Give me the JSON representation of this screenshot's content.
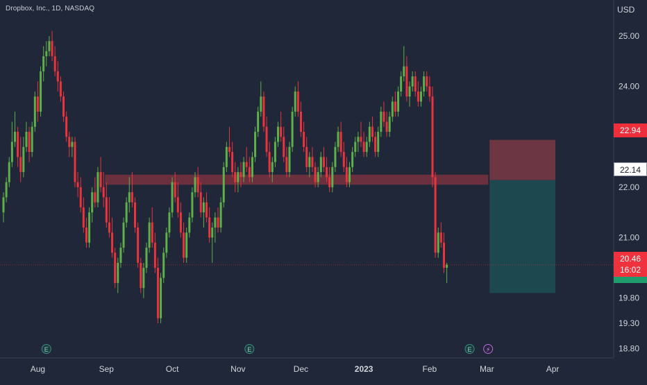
{
  "header": {
    "title": "Dropbox, Inc., 1D, NASDAQ",
    "currency": "USD"
  },
  "colors": {
    "background": "#1f2738",
    "up": "#5fb04a",
    "down": "#e9343e",
    "zone": "#8a3440",
    "target": "#7a3b45",
    "stop": "#1f4a51",
    "axis_text": "#d1d4dc"
  },
  "price_labels": {
    "target": "22.94",
    "entry": "22.14",
    "last_price": "20.46",
    "countdown": "16:02"
  },
  "earnings_icon_glyph": "E",
  "split_icon_glyph": "⚡",
  "chart_data": {
    "type": "candlestick",
    "title": "Dropbox, Inc., 1D, NASDAQ",
    "ylabel": "USD",
    "ylim": [
      18.7,
      25.4
    ],
    "y_ticks": [
      25.0,
      24.0,
      23.0,
      22.0,
      21.0,
      20.46,
      19.8,
      19.3,
      18.8
    ],
    "y_tick_labels": [
      "25.00",
      "24.00",
      "",
      "22.00",
      "21.00",
      "",
      "19.80",
      "19.30",
      "18.80"
    ],
    "x_ticks": [
      {
        "label": "Aug",
        "bar": 12
      },
      {
        "label": "Sep",
        "bar": 36
      },
      {
        "label": "Oct",
        "bar": 59
      },
      {
        "label": "Nov",
        "bar": 82
      },
      {
        "label": "Dec",
        "bar": 104
      },
      {
        "label": "2023",
        "bar": 126
      },
      {
        "label": "Feb",
        "bar": 149
      },
      {
        "label": "Mar",
        "bar": 169
      },
      {
        "label": "Apr",
        "bar": 192
      }
    ],
    "earnings_markers": [
      15,
      86,
      163
    ],
    "split_marker": [
      168
    ],
    "resistance_zone": {
      "bar_start": 36,
      "bar_end": 169,
      "low": 22.05,
      "high": 22.25
    },
    "position": {
      "bar_start": 169,
      "bar_end": 192,
      "target": 22.94,
      "entry": 22.14,
      "stop": 19.9
    },
    "last_price": 20.46,
    "candles": [
      [
        21.5,
        21.9,
        21.3,
        21.8
      ],
      [
        21.8,
        22.2,
        21.7,
        22.1
      ],
      [
        22.1,
        22.6,
        22.0,
        22.5
      ],
      [
        22.5,
        23.3,
        22.4,
        22.9
      ],
      [
        22.9,
        23.5,
        22.8,
        23.1
      ],
      [
        23.1,
        23.2,
        22.4,
        22.6
      ],
      [
        22.6,
        23.0,
        22.1,
        22.3
      ],
      [
        22.3,
        23.0,
        22.2,
        22.8
      ],
      [
        22.8,
        23.3,
        22.7,
        23.1
      ],
      [
        23.1,
        23.2,
        22.5,
        22.7
      ],
      [
        22.7,
        23.3,
        22.6,
        23.2
      ],
      [
        23.2,
        23.9,
        23.1,
        23.8
      ],
      [
        23.8,
        24.1,
        23.3,
        23.5
      ],
      [
        23.5,
        24.4,
        23.4,
        24.3
      ],
      [
        24.3,
        24.8,
        24.1,
        24.6
      ],
      [
        24.6,
        24.9,
        24.4,
        24.7
      ],
      [
        24.7,
        25.0,
        24.6,
        24.9
      ],
      [
        24.9,
        25.1,
        24.5,
        24.6
      ],
      [
        24.6,
        24.8,
        24.2,
        24.3
      ],
      [
        24.3,
        24.5,
        23.9,
        24.1
      ],
      [
        24.1,
        24.2,
        23.7,
        23.8
      ],
      [
        23.8,
        23.9,
        23.3,
        23.4
      ],
      [
        23.4,
        23.5,
        22.9,
        23.0
      ],
      [
        23.0,
        23.1,
        22.6,
        22.8
      ],
      [
        22.8,
        23.0,
        22.6,
        22.9
      ],
      [
        22.9,
        23.0,
        22.0,
        22.1
      ],
      [
        22.1,
        22.3,
        21.8,
        22.0
      ],
      [
        22.0,
        22.2,
        21.5,
        21.6
      ],
      [
        21.6,
        21.8,
        21.1,
        21.2
      ],
      [
        21.2,
        21.4,
        20.8,
        20.9
      ],
      [
        20.9,
        21.6,
        20.8,
        21.5
      ],
      [
        21.5,
        22.0,
        21.3,
        21.9
      ],
      [
        21.9,
        22.2,
        21.6,
        21.7
      ],
      [
        21.7,
        22.4,
        21.6,
        22.3
      ],
      [
        22.3,
        22.6,
        21.9,
        22.0
      ],
      [
        22.0,
        22.3,
        21.6,
        21.8
      ],
      [
        21.8,
        22.1,
        21.2,
        21.3
      ],
      [
        21.3,
        21.8,
        21.0,
        21.1
      ],
      [
        21.1,
        21.4,
        20.6,
        20.7
      ],
      [
        20.7,
        20.8,
        20.0,
        20.1
      ],
      [
        20.1,
        20.6,
        19.9,
        20.5
      ],
      [
        20.5,
        20.9,
        20.4,
        20.8
      ],
      [
        20.8,
        21.4,
        20.7,
        21.3
      ],
      [
        21.3,
        21.8,
        21.2,
        21.7
      ],
      [
        21.7,
        22.2,
        21.5,
        21.9
      ],
      [
        21.9,
        22.3,
        21.6,
        21.7
      ],
      [
        21.7,
        21.8,
        21.1,
        21.2
      ],
      [
        21.2,
        21.3,
        20.4,
        20.5
      ],
      [
        20.5,
        20.6,
        19.9,
        20.0
      ],
      [
        20.0,
        20.5,
        19.8,
        20.4
      ],
      [
        20.4,
        20.9,
        20.3,
        20.8
      ],
      [
        20.8,
        21.4,
        20.7,
        21.3
      ],
      [
        21.3,
        21.6,
        20.8,
        20.9
      ],
      [
        20.9,
        21.1,
        20.3,
        20.4
      ],
      [
        20.4,
        20.6,
        19.3,
        19.4
      ],
      [
        19.4,
        20.3,
        19.3,
        20.2
      ],
      [
        20.2,
        20.8,
        20.1,
        20.7
      ],
      [
        20.7,
        21.2,
        20.6,
        21.1
      ],
      [
        21.1,
        21.6,
        21.0,
        21.5
      ],
      [
        21.5,
        22.2,
        21.4,
        22.1
      ],
      [
        22.1,
        22.3,
        21.7,
        21.8
      ],
      [
        21.8,
        22.1,
        21.4,
        21.5
      ],
      [
        21.5,
        21.7,
        21.0,
        21.1
      ],
      [
        21.1,
        21.3,
        20.5,
        20.6
      ],
      [
        20.6,
        21.2,
        20.5,
        21.1
      ],
      [
        21.1,
        21.5,
        21.0,
        21.4
      ],
      [
        21.4,
        22.0,
        21.3,
        21.9
      ],
      [
        21.9,
        22.3,
        21.8,
        22.2
      ],
      [
        22.2,
        22.4,
        21.8,
        21.9
      ],
      [
        21.9,
        22.1,
        21.4,
        21.5
      ],
      [
        21.5,
        21.8,
        21.2,
        21.7
      ],
      [
        21.7,
        21.9,
        21.3,
        21.4
      ],
      [
        21.4,
        21.6,
        20.9,
        21.0
      ],
      [
        21.0,
        21.3,
        20.5,
        21.2
      ],
      [
        21.2,
        21.5,
        20.9,
        21.4
      ],
      [
        21.4,
        21.6,
        21.1,
        21.2
      ],
      [
        21.2,
        21.8,
        21.1,
        21.7
      ],
      [
        21.7,
        22.5,
        21.6,
        22.4
      ],
      [
        22.4,
        22.9,
        22.3,
        22.8
      ],
      [
        22.8,
        23.2,
        22.6,
        22.7
      ],
      [
        22.7,
        22.9,
        22.2,
        22.3
      ],
      [
        22.3,
        22.5,
        21.9,
        22.1
      ],
      [
        22.1,
        22.4,
        21.9,
        22.3
      ],
      [
        22.3,
        22.5,
        22.0,
        22.2
      ],
      [
        22.2,
        22.6,
        22.1,
        22.5
      ],
      [
        22.5,
        22.8,
        22.3,
        22.4
      ],
      [
        22.4,
        22.6,
        22.1,
        22.2
      ],
      [
        22.2,
        22.7,
        22.1,
        22.6
      ],
      [
        22.6,
        23.2,
        22.5,
        23.1
      ],
      [
        23.1,
        23.6,
        23.0,
        23.5
      ],
      [
        23.5,
        24.1,
        23.4,
        23.8
      ],
      [
        23.8,
        23.9,
        23.1,
        23.2
      ],
      [
        23.2,
        23.4,
        22.6,
        22.7
      ],
      [
        22.7,
        22.9,
        22.2,
        22.3
      ],
      [
        22.3,
        22.6,
        22.1,
        22.5
      ],
      [
        22.5,
        23.0,
        22.4,
        22.9
      ],
      [
        22.9,
        23.3,
        22.8,
        23.2
      ],
      [
        23.2,
        23.5,
        22.9,
        23.0
      ],
      [
        23.0,
        23.2,
        22.5,
        22.6
      ],
      [
        22.6,
        22.8,
        22.2,
        22.3
      ],
      [
        22.3,
        22.9,
        22.2,
        22.8
      ],
      [
        22.8,
        23.6,
        22.7,
        23.5
      ],
      [
        23.5,
        24.0,
        23.4,
        23.9
      ],
      [
        23.9,
        24.1,
        23.4,
        23.5
      ],
      [
        23.5,
        23.7,
        23.0,
        23.1
      ],
      [
        23.1,
        23.3,
        22.7,
        22.8
      ],
      [
        22.8,
        23.0,
        22.3,
        22.4
      ],
      [
        22.4,
        22.7,
        22.2,
        22.6
      ],
      [
        22.6,
        22.8,
        22.3,
        22.4
      ],
      [
        22.4,
        22.5,
        22.0,
        22.1
      ],
      [
        22.1,
        22.4,
        22.0,
        22.3
      ],
      [
        22.3,
        22.7,
        22.2,
        22.6
      ],
      [
        22.6,
        22.8,
        22.3,
        22.4
      ],
      [
        22.4,
        22.6,
        22.1,
        22.2
      ],
      [
        22.2,
        22.4,
        21.9,
        22.0
      ],
      [
        22.0,
        22.5,
        21.9,
        22.4
      ],
      [
        22.4,
        22.9,
        22.3,
        22.8
      ],
      [
        22.8,
        23.2,
        22.7,
        23.1
      ],
      [
        23.1,
        23.3,
        22.6,
        22.7
      ],
      [
        22.7,
        22.9,
        22.3,
        22.4
      ],
      [
        22.4,
        22.6,
        22.0,
        22.1
      ],
      [
        22.1,
        22.5,
        22.0,
        22.4
      ],
      [
        22.4,
        22.8,
        22.3,
        22.7
      ],
      [
        22.7,
        23.0,
        22.6,
        22.9
      ],
      [
        22.9,
        23.1,
        22.7,
        23.0
      ],
      [
        23.0,
        23.3,
        22.8,
        22.9
      ],
      [
        22.9,
        23.1,
        22.6,
        22.7
      ],
      [
        22.7,
        23.0,
        22.6,
        22.9
      ],
      [
        22.9,
        23.3,
        22.8,
        23.2
      ],
      [
        23.2,
        23.4,
        22.9,
        23.0
      ],
      [
        23.0,
        23.1,
        22.6,
        22.7
      ],
      [
        22.7,
        23.2,
        22.6,
        23.1
      ],
      [
        23.1,
        23.6,
        23.0,
        23.5
      ],
      [
        23.5,
        23.7,
        23.2,
        23.3
      ],
      [
        23.3,
        23.5,
        23.0,
        23.1
      ],
      [
        23.1,
        23.5,
        23.0,
        23.4
      ],
      [
        23.4,
        23.8,
        23.3,
        23.7
      ],
      [
        23.7,
        23.9,
        23.4,
        23.5
      ],
      [
        23.5,
        24.0,
        23.4,
        23.9
      ],
      [
        23.9,
        24.3,
        23.8,
        24.2
      ],
      [
        24.2,
        24.8,
        24.1,
        24.4
      ],
      [
        24.4,
        24.6,
        23.7,
        23.8
      ],
      [
        23.8,
        24.1,
        23.6,
        24.0
      ],
      [
        24.0,
        24.3,
        23.9,
        24.2
      ],
      [
        24.2,
        24.3,
        23.8,
        23.9
      ],
      [
        23.9,
        24.1,
        23.6,
        23.7
      ],
      [
        23.7,
        24.0,
        23.6,
        23.9
      ],
      [
        23.9,
        24.3,
        23.8,
        24.2
      ],
      [
        24.2,
        24.3,
        23.9,
        24.0
      ],
      [
        24.0,
        24.2,
        23.7,
        23.8
      ],
      [
        23.8,
        24.0,
        22.0,
        22.2
      ],
      [
        22.2,
        22.3,
        20.6,
        20.7
      ],
      [
        20.7,
        21.2,
        20.6,
        21.1
      ],
      [
        21.1,
        21.3,
        20.8,
        20.9
      ],
      [
        20.9,
        21.1,
        20.3,
        20.4
      ],
      [
        20.4,
        20.5,
        20.1,
        20.46
      ]
    ]
  }
}
